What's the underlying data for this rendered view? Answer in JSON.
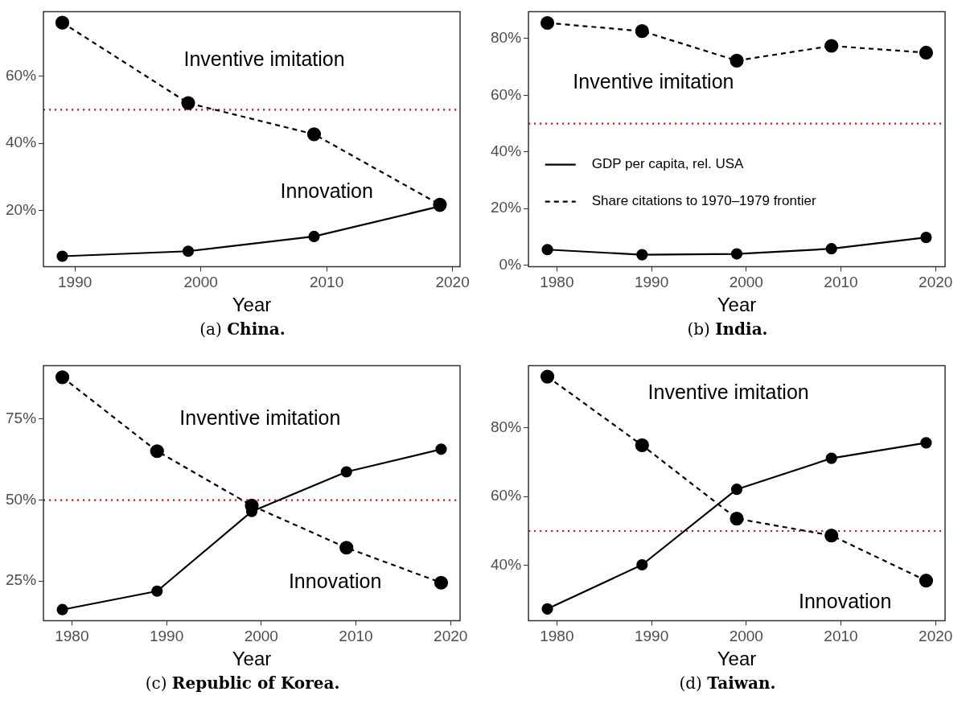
{
  "chart_data": [
    {
      "type": "line",
      "title": "(a) China.",
      "xlabel": "Year",
      "xlim": [
        1987.5,
        2020.6
      ],
      "xticks": [
        1990,
        2000,
        2010,
        2020
      ],
      "ylim": [
        3.2,
        79.3
      ],
      "yticks": [
        {
          "value": 20,
          "label": "20%"
        },
        {
          "value": 40,
          "label": "40%"
        },
        {
          "value": 60,
          "label": "60%"
        }
      ],
      "grid": false,
      "marker": "circle",
      "legend": false,
      "x": [
        1989,
        1999,
        2009,
        2019
      ],
      "series": [
        {
          "color": "#000000",
          "line_style": "solid",
          "values": [
            6.3,
            7.8,
            12.2,
            21.2
          ]
        },
        {
          "color": "#000000",
          "line_style": "dashed",
          "values": [
            76,
            52,
            42.7,
            21.7
          ]
        }
      ],
      "ref_lines": [
        {
          "axis": "y",
          "value": 50,
          "color": "#ff0000",
          "line_style": "dotted"
        }
      ],
      "annotations": [
        "Inventive imitation",
        "Innovation"
      ]
    },
    {
      "type": "line",
      "title": "(b) India.",
      "xlabel": "Year",
      "xlim": [
        1977,
        2021
      ],
      "xticks": [
        1980,
        1990,
        2000,
        2010,
        2020
      ],
      "ylim": [
        -0.5,
        89.5
      ],
      "yticks": [
        {
          "value": 0,
          "label": "0%"
        },
        {
          "value": 20,
          "label": "20%"
        },
        {
          "value": 40,
          "label": "40%"
        },
        {
          "value": 60,
          "label": "60%"
        },
        {
          "value": 80,
          "label": "80%"
        }
      ],
      "grid": false,
      "marker": "circle",
      "legend": "left",
      "x": [
        1979,
        1989,
        1999,
        2009,
        2019
      ],
      "series": [
        {
          "name": "GDP per capita, rel. USA",
          "color": "#000000",
          "line_style": "solid",
          "values": [
            5.5,
            3.7,
            4,
            5.8,
            9.8
          ]
        },
        {
          "name": "Share citations to 1970–1979 frontier",
          "color": "#000000",
          "line_style": "dashed",
          "values": [
            85.5,
            82.6,
            72.2,
            77.4,
            75
          ]
        }
      ],
      "ref_lines": [
        {
          "axis": "y",
          "value": 50,
          "color": "#ff0000",
          "line_style": "dotted"
        }
      ],
      "annotations": [
        "Inventive imitation"
      ]
    },
    {
      "type": "line",
      "title": "(c) Republic of Korea.",
      "xlabel": "Year",
      "xlim": [
        1977,
        2021
      ],
      "xticks": [
        1980,
        1990,
        2000,
        2010,
        2020
      ],
      "ylim": [
        12.8,
        91.5
      ],
      "yticks": [
        {
          "value": 25,
          "label": "25%"
        },
        {
          "value": 50,
          "label": "50%"
        },
        {
          "value": 75,
          "label": "75%"
        }
      ],
      "grid": false,
      "marker": "circle",
      "legend": false,
      "x": [
        1979,
        1989,
        1999,
        2009,
        2019
      ],
      "series": [
        {
          "color": "#000000",
          "line_style": "solid",
          "values": [
            16.2,
            21.9,
            46.5,
            58.7,
            65.7
          ]
        },
        {
          "color": "#000000",
          "line_style": "dashed",
          "values": [
            87.9,
            65.1,
            48.3,
            35.3,
            24.5
          ]
        }
      ],
      "ref_lines": [
        {
          "axis": "y",
          "value": 50,
          "color": "#ff0000",
          "line_style": "dotted"
        }
      ],
      "annotations": [
        "Inventive imitation",
        "Innovation"
      ]
    },
    {
      "type": "line",
      "title": "(d) Taiwan.",
      "xlabel": "Year",
      "xlim": [
        1977,
        2021
      ],
      "xticks": [
        1980,
        1990,
        2000,
        2010,
        2020
      ],
      "ylim": [
        24,
        98
      ],
      "yticks": [
        {
          "value": 40,
          "label": "40%"
        },
        {
          "value": 60,
          "label": "60%"
        },
        {
          "value": 80,
          "label": "80%"
        }
      ],
      "grid": false,
      "marker": "circle",
      "legend": false,
      "x": [
        1979,
        1989,
        1999,
        2009,
        2019
      ],
      "series": [
        {
          "color": "#000000",
          "line_style": "solid",
          "values": [
            27.4,
            40.2,
            62.1,
            71.1,
            75.6
          ]
        },
        {
          "color": "#000000",
          "line_style": "dashed",
          "values": [
            94.8,
            74.9,
            53.6,
            48.7,
            35.6
          ]
        }
      ],
      "ref_lines": [
        {
          "axis": "y",
          "value": 50,
          "color": "#ff0000",
          "line_style": "dotted"
        }
      ],
      "annotations": [
        "Inventive imitation",
        "Innovation"
      ]
    }
  ]
}
